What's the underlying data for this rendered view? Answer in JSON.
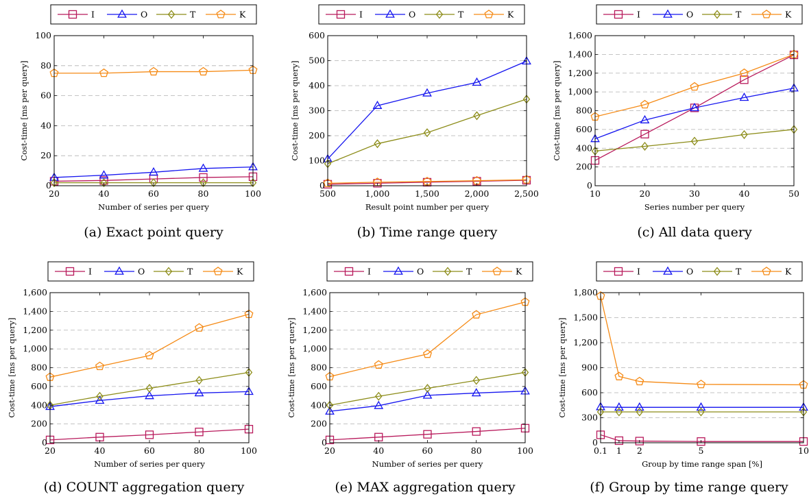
{
  "series_styles": {
    "I": {
      "color": "#b8195b",
      "marker": "square"
    },
    "O": {
      "color": "#1515ef",
      "marker": "triangle"
    },
    "T": {
      "color": "#8c8c18",
      "marker": "diamond"
    },
    "K": {
      "color": "#f58a15",
      "marker": "pentagon"
    }
  },
  "chart_data": [
    {
      "type": "line",
      "caption": "(a) Exact point query",
      "xlabel": "Number of series per query",
      "ylabel": "Cost-time [ms per query]",
      "xlim": [
        20,
        100
      ],
      "ylim": [
        0,
        100
      ],
      "x_ticks": [
        20,
        40,
        60,
        80,
        100
      ],
      "x_tick_labels": [
        "20",
        "40",
        "60",
        "80",
        "100"
      ],
      "y_ticks": [
        0,
        20,
        40,
        60,
        80,
        100
      ],
      "y_tick_labels": [
        "0",
        "20",
        "40",
        "60",
        "80",
        "100"
      ],
      "grid": "horizontal-dashed",
      "legend": "top",
      "series": [
        {
          "name": "I",
          "x": [
            20,
            40,
            60,
            80,
            100
          ],
          "y": [
            3,
            3.5,
            4.5,
            5.5,
            6
          ]
        },
        {
          "name": "O",
          "x": [
            20,
            40,
            60,
            80,
            100
          ],
          "y": [
            5.5,
            7,
            9,
            11.5,
            12.5
          ]
        },
        {
          "name": "T",
          "x": [
            20,
            40,
            60,
            80,
            100
          ],
          "y": [
            2,
            2,
            2,
            2,
            2
          ]
        },
        {
          "name": "K",
          "x": [
            20,
            40,
            60,
            80,
            100
          ],
          "y": [
            75,
            75,
            76,
            76,
            77
          ]
        }
      ]
    },
    {
      "type": "line",
      "caption": "(b) Time range query",
      "xlabel": "Result point number per query",
      "ylabel": "Cost-time [ms per query]",
      "xlim": [
        500,
        2500
      ],
      "ylim": [
        0,
        600
      ],
      "x_ticks": [
        500,
        1000,
        1500,
        2000,
        2500
      ],
      "x_tick_labels": [
        "500",
        "1,000",
        "1,500",
        "2,000",
        "2,500"
      ],
      "y_ticks": [
        0,
        100,
        200,
        300,
        400,
        500,
        600
      ],
      "y_tick_labels": [
        "0",
        "100",
        "200",
        "300",
        "400",
        "500",
        "600"
      ],
      "grid": "horizontal-dashed",
      "legend": "top",
      "series": [
        {
          "name": "I",
          "x": [
            500,
            1000,
            1500,
            2000,
            2500
          ],
          "y": [
            6,
            10,
            14,
            18,
            22
          ]
        },
        {
          "name": "O",
          "x": [
            500,
            1000,
            1500,
            2000,
            2500
          ],
          "y": [
            107,
            320,
            370,
            413,
            498
          ]
        },
        {
          "name": "T",
          "x": [
            500,
            1000,
            1500,
            2000,
            2500
          ],
          "y": [
            88,
            168,
            212,
            280,
            346
          ]
        },
        {
          "name": "K",
          "x": [
            500,
            1000,
            1500,
            2000,
            2500
          ],
          "y": [
            10,
            14,
            17,
            20,
            24
          ]
        }
      ]
    },
    {
      "type": "line",
      "caption": "(c) All data query",
      "xlabel": "Series number per query",
      "ylabel": "Cost-time [ms per query]",
      "xlim": [
        10,
        50
      ],
      "ylim": [
        0,
        1600
      ],
      "x_ticks": [
        10,
        20,
        30,
        40,
        50
      ],
      "x_tick_labels": [
        "10",
        "20",
        "30",
        "40",
        "50"
      ],
      "y_ticks": [
        0,
        200,
        400,
        600,
        800,
        1000,
        1200,
        1400,
        1600
      ],
      "y_tick_labels": [
        "0",
        "200",
        "400",
        "600",
        "800",
        "1,000",
        "1,200",
        "1,400",
        "1,600"
      ],
      "grid": "horizontal-dashed",
      "legend": "top",
      "series": [
        {
          "name": "I",
          "x": [
            10,
            20,
            30,
            40,
            50
          ],
          "y": [
            270,
            550,
            830,
            1130,
            1395
          ]
        },
        {
          "name": "O",
          "x": [
            10,
            20,
            30,
            40,
            50
          ],
          "y": [
            500,
            700,
            830,
            940,
            1040
          ]
        },
        {
          "name": "T",
          "x": [
            10,
            20,
            30,
            40,
            50
          ],
          "y": [
            370,
            420,
            475,
            545,
            600
          ]
        },
        {
          "name": "K",
          "x": [
            10,
            20,
            30,
            40,
            50
          ],
          "y": [
            735,
            865,
            1055,
            1200,
            1400
          ]
        }
      ]
    },
    {
      "type": "line",
      "caption": "(d) COUNT aggregation query",
      "xlabel": "Number of series per query",
      "ylabel": "Cost-time [ms per query]",
      "xlim": [
        20,
        100
      ],
      "ylim": [
        0,
        1600
      ],
      "x_ticks": [
        20,
        40,
        60,
        80,
        100
      ],
      "x_tick_labels": [
        "20",
        "40",
        "60",
        "80",
        "100"
      ],
      "y_ticks": [
        0,
        200,
        400,
        600,
        800,
        1000,
        1200,
        1400,
        1600
      ],
      "y_tick_labels": [
        "0",
        "200",
        "400",
        "600",
        "800",
        "1,000",
        "1,200",
        "1,400",
        "1,600"
      ],
      "grid": "horizontal-dashed",
      "legend": "top",
      "series": [
        {
          "name": "I",
          "x": [
            20,
            40,
            60,
            80,
            100
          ],
          "y": [
            30,
            60,
            85,
            115,
            145
          ]
        },
        {
          "name": "O",
          "x": [
            20,
            40,
            60,
            80,
            100
          ],
          "y": [
            385,
            450,
            500,
            530,
            545
          ]
        },
        {
          "name": "T",
          "x": [
            20,
            40,
            60,
            80,
            100
          ],
          "y": [
            400,
            495,
            580,
            665,
            750
          ]
        },
        {
          "name": "K",
          "x": [
            20,
            40,
            60,
            80,
            100
          ],
          "y": [
            700,
            815,
            930,
            1225,
            1370
          ]
        }
      ]
    },
    {
      "type": "line",
      "caption": "(e) MAX aggregation query",
      "xlabel": "Number of series per query",
      "ylabel": "Cost-time [ms per query]",
      "xlim": [
        20,
        100
      ],
      "ylim": [
        0,
        1600
      ],
      "x_ticks": [
        20,
        40,
        60,
        80,
        100
      ],
      "x_tick_labels": [
        "20",
        "40",
        "60",
        "80",
        "100"
      ],
      "y_ticks": [
        0,
        200,
        400,
        600,
        800,
        1000,
        1200,
        1400,
        1600
      ],
      "y_tick_labels": [
        "0",
        "200",
        "400",
        "600",
        "800",
        "1,000",
        "1,200",
        "1,400",
        "1,600"
      ],
      "grid": "horizontal-dashed",
      "legend": "top",
      "series": [
        {
          "name": "I",
          "x": [
            20,
            40,
            60,
            80,
            100
          ],
          "y": [
            30,
            60,
            90,
            120,
            155
          ]
        },
        {
          "name": "O",
          "x": [
            20,
            40,
            60,
            80,
            100
          ],
          "y": [
            335,
            395,
            505,
            530,
            550
          ]
        },
        {
          "name": "T",
          "x": [
            20,
            40,
            60,
            80,
            100
          ],
          "y": [
            400,
            495,
            580,
            665,
            750
          ]
        },
        {
          "name": "K",
          "x": [
            20,
            40,
            60,
            80,
            100
          ],
          "y": [
            705,
            830,
            945,
            1365,
            1500
          ]
        }
      ]
    },
    {
      "type": "line",
      "caption": "(f) Group by time range query",
      "xlabel": "Group by time range span [%]",
      "ylabel": "Cost-time [ms per query]",
      "xlim": [
        0.1,
        10
      ],
      "ylim": [
        0,
        1800
      ],
      "x_ticks": [
        0.1,
        1,
        2,
        5,
        10
      ],
      "x_tick_labels": [
        "0.1",
        "1",
        "2",
        "5",
        "10"
      ],
      "y_ticks": [
        0,
        300,
        600,
        900,
        1200,
        1500,
        1800
      ],
      "y_tick_labels": [
        "0",
        "300",
        "600",
        "900",
        "1,200",
        "1,500",
        "1,800"
      ],
      "grid": "horizontal-dashed",
      "legend": "top",
      "series": [
        {
          "name": "I",
          "x": [
            0.1,
            1,
            2,
            5,
            10
          ],
          "y": [
            95,
            25,
            20,
            15,
            15
          ]
        },
        {
          "name": "O",
          "x": [
            0.1,
            1,
            2,
            5,
            10
          ],
          "y": [
            430,
            425,
            425,
            425,
            425
          ]
        },
        {
          "name": "T",
          "x": [
            0.1,
            1,
            2,
            5,
            10
          ],
          "y": [
            370,
            370,
            370,
            370,
            370
          ]
        },
        {
          "name": "K",
          "x": [
            0.1,
            1,
            2,
            5,
            10
          ],
          "y": [
            1760,
            795,
            735,
            700,
            695
          ]
        }
      ]
    }
  ]
}
